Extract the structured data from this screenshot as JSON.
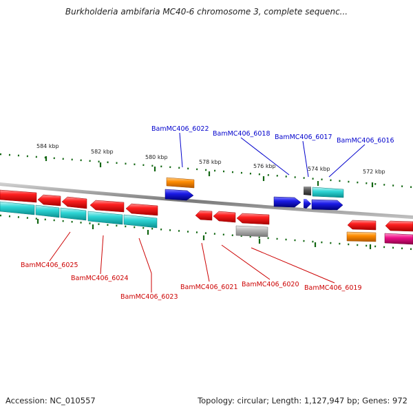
{
  "title": "Burkholderia ambifaria MC40-6 chromosome 3, complete sequenc...",
  "footer": {
    "accession": "Accession: NC_010557",
    "topology": "Topology: circular; Length: 1,127,947 bp; Genes: 972"
  },
  "colors": {
    "red": "#ee1111",
    "cyan": "#22cccc",
    "blue": "#1111dd",
    "orange": "#ff8800",
    "gray": "#aaaaaa",
    "darkgray": "#555555",
    "magenta": "#ee1188",
    "backbone": "#888888",
    "tick": "#116611",
    "label_red": "#cc0000",
    "label_blue": "#0000cc"
  },
  "ticks": [
    "584 kbp",
    "582 kbp",
    "580 kbp",
    "578 kbp",
    "576 kbp",
    "574 kbp",
    "572 kbp"
  ],
  "top_labels": [
    "BamMC406_6022",
    "BamMC406_6018",
    "BamMC406_6017",
    "BamMC406_6016"
  ],
  "bottom_labels": [
    "BamMC406_6025",
    "BamMC406_6024",
    "BamMC406_6023",
    "BamMC406_6021",
    "BamMC406_6020",
    "BamMC406_6019"
  ]
}
